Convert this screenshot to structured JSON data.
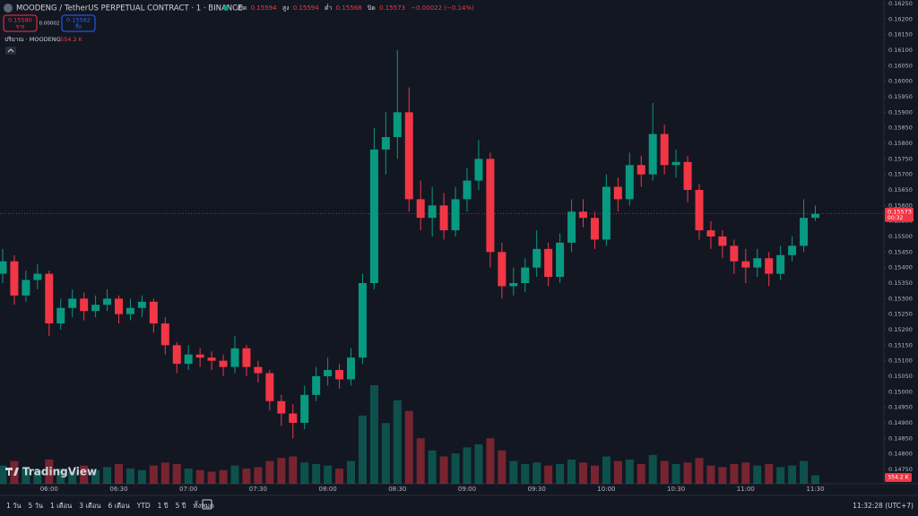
{
  "header": {
    "symbol": "MOODENG / TetherUS PERPETUAL CONTRACT · 1 · BINANCE",
    "open_label": "เปิด",
    "open": "0.15594",
    "high_label": "สูง",
    "high": "0.15594",
    "low_label": "ต่ำ",
    "low": "0.15568",
    "close_label": "ปิด",
    "close": "0.15573",
    "change": "−0.00022 (−0.14%)",
    "sell_price": "0.15580",
    "sell_label": "ขาย",
    "spread": "0.00002",
    "buy_price": "0.15582",
    "buy_label": "ซื้อ",
    "volume_title": "ปริมาณ · MOODENG",
    "volume_value": "554.2 K"
  },
  "logo": "TradingView",
  "toolbar": {
    "ranges": [
      "1 วัน",
      "5 วัน",
      "1 เดือน",
      "3 เดือน",
      "6 เดือน",
      "YTD",
      "1 ปี",
      "5 ปี",
      "ทั้งหมด"
    ],
    "clock": "11:32:28 (UTC+7)"
  },
  "chart_data": {
    "type": "candlestick",
    "up_color": "#089981",
    "down_color": "#f23645",
    "x": [
      "05:40",
      "05:45",
      "05:50",
      "05:55",
      "06:00",
      "06:05",
      "06:10",
      "06:15",
      "06:20",
      "06:25",
      "06:30",
      "06:35",
      "06:40",
      "06:45",
      "06:50",
      "06:55",
      "07:00",
      "07:05",
      "07:10",
      "07:15",
      "07:20",
      "07:25",
      "07:30",
      "07:35",
      "07:40",
      "07:45",
      "07:50",
      "07:55",
      "08:00",
      "08:05",
      "08:10",
      "08:15",
      "08:20",
      "08:25",
      "08:30",
      "08:35",
      "08:40",
      "08:45",
      "08:50",
      "08:55",
      "09:00",
      "09:05",
      "09:10",
      "09:15",
      "09:20",
      "09:25",
      "09:30",
      "09:35",
      "09:40",
      "09:45",
      "09:50",
      "09:55",
      "10:00",
      "10:05",
      "10:10",
      "10:15",
      "10:20",
      "10:25",
      "10:30",
      "10:35",
      "10:40",
      "10:45",
      "10:50",
      "10:55",
      "11:00",
      "11:05",
      "11:10",
      "11:15",
      "11:20",
      "11:25",
      "11:30"
    ],
    "open": [
      0.1538,
      0.1542,
      0.1531,
      0.1536,
      0.1538,
      0.1522,
      0.1527,
      0.153,
      0.1526,
      0.1528,
      0.153,
      0.1525,
      0.1527,
      0.1529,
      0.1522,
      0.1515,
      0.1509,
      0.1512,
      0.1511,
      0.151,
      0.1508,
      0.1514,
      0.1508,
      0.1506,
      0.1497,
      0.1493,
      0.149,
      0.1499,
      0.1505,
      0.1507,
      0.1504,
      0.1511,
      0.1535,
      0.1578,
      0.1582,
      0.159,
      0.1562,
      0.1556,
      0.156,
      0.1552,
      0.1562,
      0.1568,
      0.1575,
      0.1545,
      0.1534,
      0.1535,
      0.154,
      0.1546,
      0.1537,
      0.1548,
      0.1558,
      0.1556,
      0.1549,
      0.1566,
      0.1562,
      0.1573,
      0.157,
      0.1583,
      0.1573,
      0.1574,
      0.1565,
      0.1552,
      0.155,
      0.1547,
      0.1542,
      0.154,
      0.1543,
      0.1538,
      0.1544,
      0.1547,
      0.1556
    ],
    "high": [
      0.1546,
      0.1544,
      0.1539,
      0.1541,
      0.1539,
      0.153,
      0.1533,
      0.1532,
      0.1531,
      0.1533,
      0.1531,
      0.153,
      0.1531,
      0.153,
      0.1524,
      0.1516,
      0.1515,
      0.1514,
      0.1513,
      0.1512,
      0.1518,
      0.1515,
      0.151,
      0.1507,
      0.1499,
      0.1496,
      0.1502,
      0.1508,
      0.1511,
      0.1509,
      0.1514,
      0.1538,
      0.1585,
      0.159,
      0.161,
      0.1598,
      0.1568,
      0.1566,
      0.1564,
      0.1566,
      0.1572,
      0.1581,
      0.1577,
      0.1548,
      0.154,
      0.1543,
      0.1552,
      0.1548,
      0.1551,
      0.1562,
      0.1562,
      0.1558,
      0.157,
      0.1569,
      0.1577,
      0.1576,
      0.1593,
      0.1586,
      0.1578,
      0.1576,
      0.1567,
      0.1555,
      0.1552,
      0.1549,
      0.1546,
      0.1546,
      0.1545,
      0.1547,
      0.155,
      0.1562,
      0.156
    ],
    "low": [
      0.1535,
      0.1528,
      0.1529,
      0.1533,
      0.1518,
      0.152,
      0.1524,
      0.1523,
      0.1524,
      0.1526,
      0.1522,
      0.1523,
      0.1524,
      0.1519,
      0.1512,
      0.1506,
      0.1507,
      0.1508,
      0.1507,
      0.1505,
      0.1506,
      0.1505,
      0.1503,
      0.1494,
      0.1489,
      0.1485,
      0.1488,
      0.1497,
      0.1502,
      0.1501,
      0.1502,
      0.1509,
      0.1533,
      0.157,
      0.1575,
      0.1558,
      0.1552,
      0.155,
      0.1549,
      0.155,
      0.1558,
      0.1565,
      0.154,
      0.153,
      0.1531,
      0.1532,
      0.1537,
      0.1534,
      0.1535,
      0.1545,
      0.1553,
      0.1546,
      0.1547,
      0.1558,
      0.156,
      0.1566,
      0.1568,
      0.157,
      0.1569,
      0.1561,
      0.1549,
      0.1546,
      0.1543,
      0.1538,
      0.1535,
      0.1537,
      0.1534,
      0.1536,
      0.1542,
      0.1545,
      0.1555
    ],
    "close": [
      0.1542,
      0.1531,
      0.1536,
      0.1538,
      0.1522,
      0.1527,
      0.153,
      0.1526,
      0.1528,
      0.153,
      0.1525,
      0.1527,
      0.1529,
      0.1522,
      0.1515,
      0.1509,
      0.1512,
      0.1511,
      0.151,
      0.1508,
      0.1514,
      0.1508,
      0.1506,
      0.1497,
      0.1493,
      0.149,
      0.1499,
      0.1505,
      0.1507,
      0.1504,
      0.1511,
      0.1535,
      0.1578,
      0.1582,
      0.159,
      0.1562,
      0.1556,
      0.156,
      0.1552,
      0.1562,
      0.1568,
      0.1575,
      0.1545,
      0.1534,
      0.1535,
      0.154,
      0.1546,
      0.1537,
      0.1548,
      0.1558,
      0.1556,
      0.1549,
      0.1566,
      0.1562,
      0.1573,
      0.157,
      0.1583,
      0.1573,
      0.1574,
      0.1565,
      0.1552,
      0.155,
      0.1547,
      0.1542,
      0.154,
      0.1543,
      0.1538,
      0.1544,
      0.1547,
      0.1556,
      0.15573
    ],
    "volume": [
      1200000,
      1500000,
      1100000,
      900000,
      1600000,
      1000000,
      800000,
      1200000,
      900000,
      1100000,
      1300000,
      1000000,
      900000,
      1200000,
      1400000,
      1300000,
      1000000,
      900000,
      800000,
      900000,
      1200000,
      1000000,
      1100000,
      1500000,
      1700000,
      1800000,
      1400000,
      1300000,
      1200000,
      1000000,
      1500000,
      4500000,
      6500000,
      4000000,
      5500000,
      4800000,
      3000000,
      2200000,
      1800000,
      2000000,
      2400000,
      2600000,
      3000000,
      2200000,
      1500000,
      1300000,
      1400000,
      1200000,
      1300000,
      1600000,
      1400000,
      1200000,
      1800000,
      1500000,
      1600000,
      1300000,
      1900000,
      1500000,
      1300000,
      1400000,
      1700000,
      1200000,
      1100000,
      1300000,
      1400000,
      1200000,
      1300000,
      1100000,
      1200000,
      1500000,
      554200
    ],
    "countdown": "00:32",
    "ylim": [
      0.1475,
      0.1625
    ],
    "yticks": [
      {
        "value": 0.1475,
        "label": "0.14750"
      },
      {
        "value": 0.148,
        "label": "0.14800"
      },
      {
        "value": 0.1485,
        "label": "0.14850"
      },
      {
        "value": 0.149,
        "label": "0.14900"
      },
      {
        "value": 0.1495,
        "label": "0.14950"
      },
      {
        "value": 0.15,
        "label": "0.15000"
      },
      {
        "value": 0.1505,
        "label": "0.15050"
      },
      {
        "value": 0.151,
        "label": "0.15100"
      },
      {
        "value": 0.1515,
        "label": "0.15150"
      },
      {
        "value": 0.152,
        "label": "0.15200"
      },
      {
        "value": 0.1525,
        "label": "0.15250"
      },
      {
        "value": 0.153,
        "label": "0.15300"
      },
      {
        "value": 0.1535,
        "label": "0.15350"
      },
      {
        "value": 0.154,
        "label": "0.15400"
      },
      {
        "value": 0.1545,
        "label": "0.15450"
      },
      {
        "value": 0.155,
        "label": "0.15500"
      },
      {
        "value": 0.1555,
        "label": "0.15550"
      },
      {
        "value": 0.156,
        "label": "0.15600"
      },
      {
        "value": 0.1565,
        "label": "0.15650"
      },
      {
        "value": 0.157,
        "label": "0.15700"
      },
      {
        "value": 0.1575,
        "label": "0.15750"
      },
      {
        "value": 0.158,
        "label": "0.15800"
      },
      {
        "value": 0.1585,
        "label": "0.15850"
      },
      {
        "value": 0.159,
        "label": "0.15900"
      },
      {
        "value": 0.1595,
        "label": "0.15950"
      },
      {
        "value": 0.16,
        "label": "0.16000"
      },
      {
        "value": 0.1605,
        "label": "0.16050"
      },
      {
        "value": 0.161,
        "label": "0.16100"
      },
      {
        "value": 0.1615,
        "label": "0.16150"
      },
      {
        "value": 0.162,
        "label": "0.16200"
      },
      {
        "value": 0.1625,
        "label": "0.16250"
      }
    ],
    "xticks": [
      "06:00",
      "06:30",
      "07:00",
      "07:30",
      "08:00",
      "08:30",
      "09:00",
      "09:30",
      "10:00",
      "10:30",
      "11:00",
      "11:30"
    ]
  }
}
